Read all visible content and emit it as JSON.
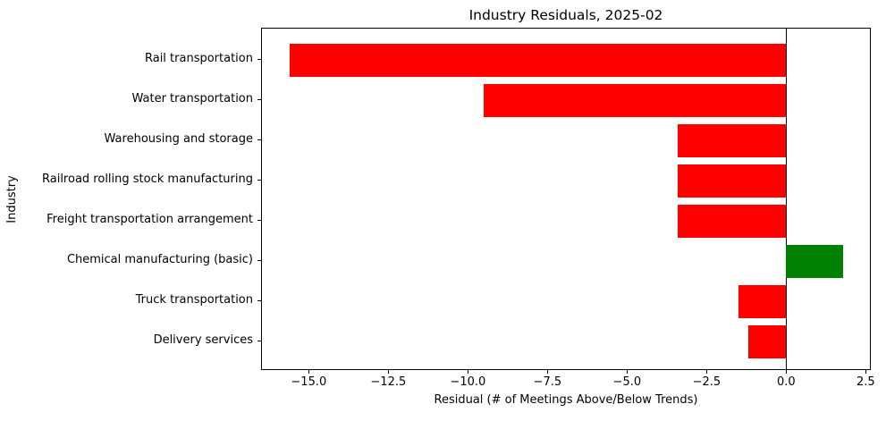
{
  "chart_data": {
    "type": "bar",
    "orientation": "horizontal",
    "title": "Industry Residuals, 2025-02",
    "xlabel": "Residual (# of Meetings Above/Below Trends)",
    "ylabel": "Industry",
    "categories": [
      "Rail transportation",
      "Water transportation",
      "Warehousing and storage",
      "Railroad rolling stock manufacturing",
      "Freight transportation arrangement",
      "Chemical manufacturing (basic)",
      "Truck transportation",
      "Delivery services"
    ],
    "values": [
      -15.6,
      -9.5,
      -3.4,
      -3.4,
      -3.4,
      1.8,
      -1.5,
      -1.2
    ],
    "colors": {
      "negative": "#ff0000",
      "positive": "#008000",
      "axis": "#000000"
    },
    "xlim": [
      -16.47,
      2.63
    ],
    "x_ticks": [
      -15.0,
      -12.5,
      -10.0,
      -7.5,
      -5.0,
      -2.5,
      0.0,
      2.5
    ],
    "x_tick_labels": [
      "−15.0",
      "−12.5",
      "−10.0",
      "−7.5",
      "−5.0",
      "−2.5",
      "0.0",
      "2.5"
    ],
    "grid": false,
    "zero_line": true,
    "legend_position": "none"
  }
}
